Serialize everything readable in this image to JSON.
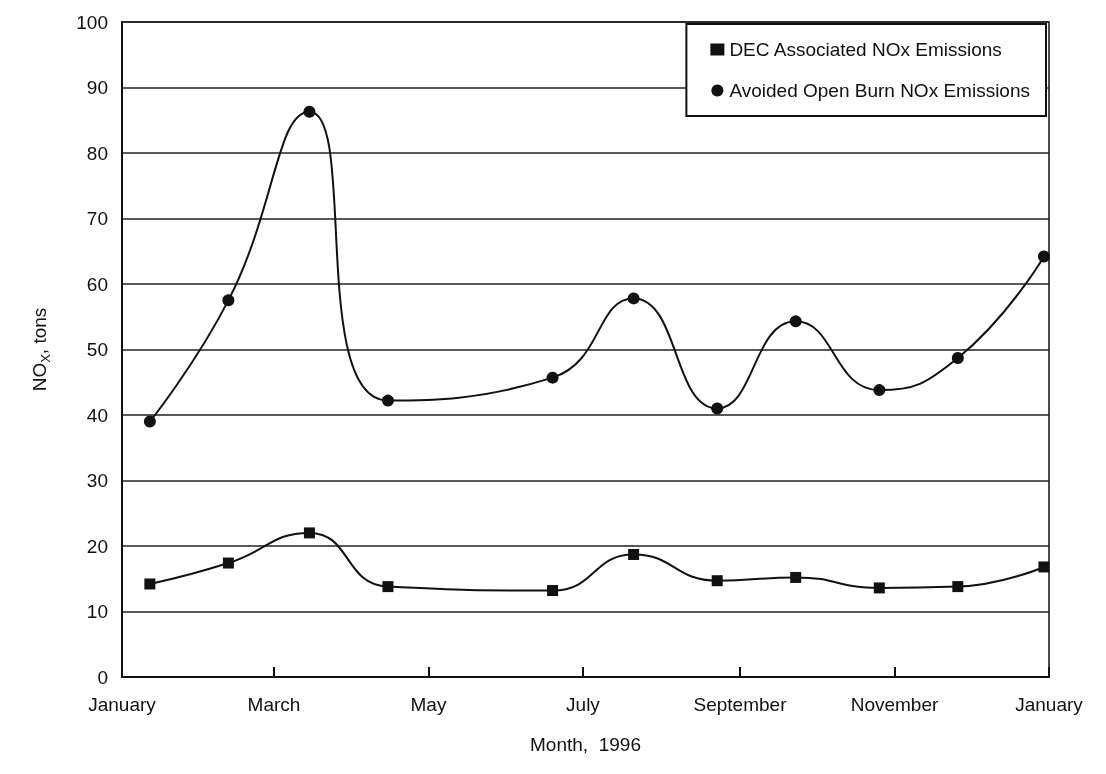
{
  "chart_data": {
    "type": "line",
    "xlabel": "Month,  1996",
    "ylabel": "NO$_{X}$, tons",
    "xlim": [
      "1996-01-01",
      "1997-01-01"
    ],
    "xticks": [
      {
        "value": "1996-01-01",
        "label": "January"
      },
      {
        "value": "1996-03-01",
        "label": "March"
      },
      {
        "value": "1996-05-01",
        "label": "May"
      },
      {
        "value": "1996-07-01",
        "label": "July"
      },
      {
        "value": "1996-09-01",
        "label": "September"
      },
      {
        "value": "1996-11-01",
        "label": "November"
      },
      {
        "value": "1997-01-01",
        "label": "January"
      }
    ],
    "ylim": [
      0,
      100
    ],
    "yticks": [
      0,
      10,
      20,
      30,
      40,
      50,
      60,
      70,
      80,
      90,
      100
    ],
    "grid": "y",
    "legend": "top right",
    "line_style": "solid",
    "series": [
      {
        "name": "DEC Associated NOx Emissions",
        "color": "#111111",
        "marker": "square",
        "x": [
          "1996-01-12",
          "1996-02-12",
          "1996-03-15",
          "1996-04-15",
          "1996-06-19",
          "1996-07-21",
          "1996-08-23",
          "1996-09-23",
          "1996-10-26",
          "1996-11-26",
          "1996-12-30"
        ],
        "values": [
          14.2,
          17.4,
          22,
          13.8,
          13.2,
          18.7,
          14.7,
          15.2,
          13.6,
          13.8,
          16.8
        ]
      },
      {
        "name": "Avoided Open Burn NOx Emissions",
        "color": "#111111",
        "marker": "circle",
        "x": [
          "1996-01-12",
          "1996-02-12",
          "1996-03-15",
          "1996-04-15",
          "1996-06-19",
          "1996-07-21",
          "1996-08-23",
          "1996-09-23",
          "1996-10-26",
          "1996-11-26",
          "1996-12-30"
        ],
        "values": [
          39,
          57.5,
          86.3,
          42.2,
          45.7,
          57.8,
          41,
          54.3,
          43.8,
          48.7,
          64.2
        ]
      }
    ]
  }
}
